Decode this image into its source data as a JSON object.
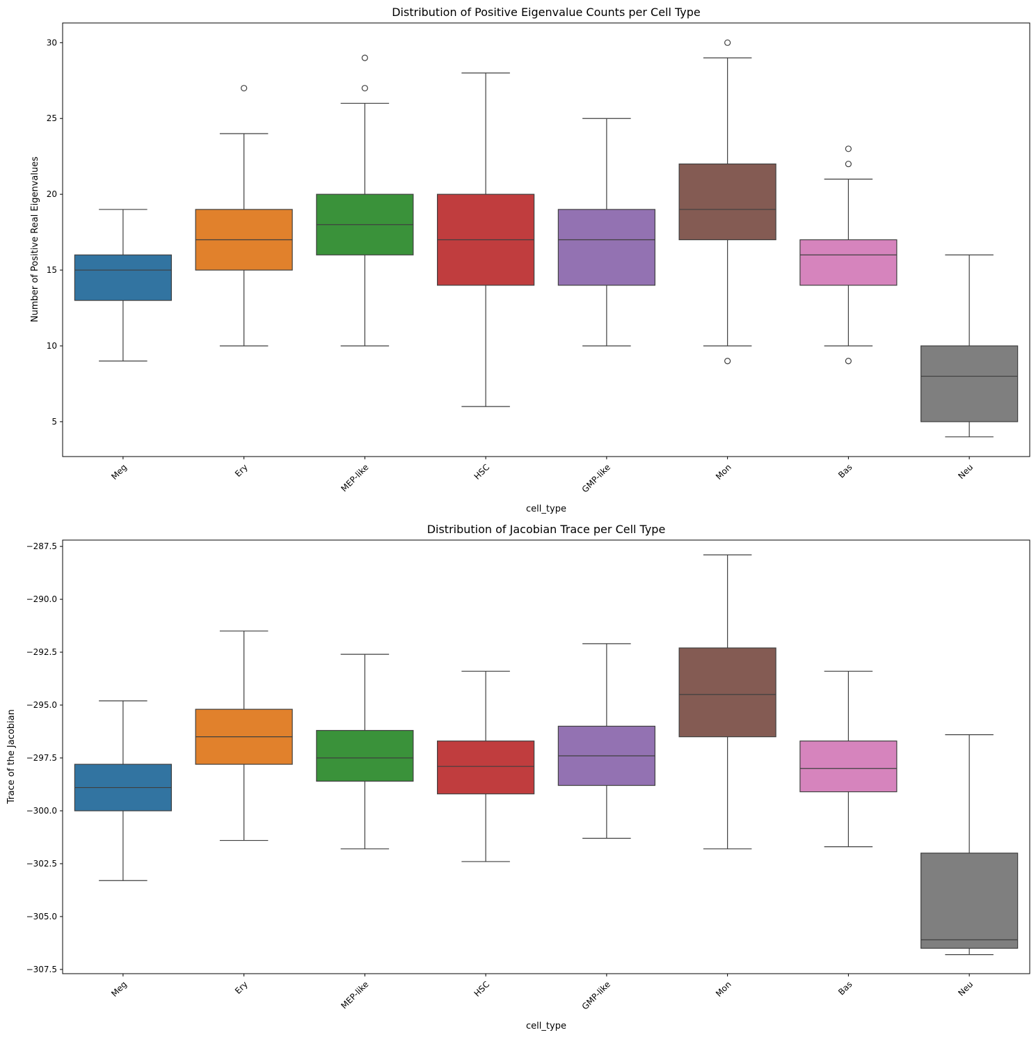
{
  "chart_data": [
    {
      "type": "box",
      "title": "Distribution of Positive Eigenvalue Counts per Cell Type",
      "xlabel": "cell_type",
      "ylabel": "Number of Positive Real Eigenvalues",
      "ylim": [
        2.7,
        31.3
      ],
      "yticks": [
        5,
        10,
        15,
        20,
        25,
        30
      ],
      "ytick_labels": [
        "5",
        "10",
        "15",
        "20",
        "25",
        "30"
      ],
      "categories": [
        "Meg",
        "Ery",
        "MEP-like",
        "HSC",
        "GMP-like",
        "Mon",
        "Bas",
        "Neu"
      ],
      "colors": [
        "#3274a1",
        "#e1812c",
        "#3a923a",
        "#c03d3e",
        "#9372b2",
        "#845b53",
        "#d684bd",
        "#7f7f7f"
      ],
      "boxes": [
        {
          "whislo": 9,
          "q1": 13,
          "med": 15,
          "q3": 16,
          "whishi": 19,
          "fliers": []
        },
        {
          "whislo": 10,
          "q1": 15,
          "med": 17,
          "q3": 19,
          "whishi": 24,
          "fliers": [
            27
          ]
        },
        {
          "whislo": 10,
          "q1": 16,
          "med": 18,
          "q3": 20,
          "whishi": 26,
          "fliers": [
            27,
            29
          ]
        },
        {
          "whislo": 6,
          "q1": 14,
          "med": 17,
          "q3": 20,
          "whishi": 28,
          "fliers": []
        },
        {
          "whislo": 10,
          "q1": 14,
          "med": 17,
          "q3": 19,
          "whishi": 25,
          "fliers": []
        },
        {
          "whislo": 10,
          "q1": 17,
          "med": 19,
          "q3": 22,
          "whishi": 29,
          "fliers": [
            30,
            9
          ]
        },
        {
          "whislo": 10,
          "q1": 14,
          "med": 16,
          "q3": 17,
          "whishi": 21,
          "fliers": [
            23,
            22,
            9
          ]
        },
        {
          "whislo": 4,
          "q1": 5,
          "med": 8,
          "q3": 10,
          "whishi": 16,
          "fliers": []
        }
      ]
    },
    {
      "type": "box",
      "title": "Distribution of Jacobian Trace per Cell Type",
      "xlabel": "cell_type",
      "ylabel": "Trace of the Jacobian",
      "ylim": [
        -307.7,
        -287.2
      ],
      "yticks": [
        -287.5,
        -290.0,
        -292.5,
        -295.0,
        -297.5,
        -300.0,
        -302.5,
        -305.0,
        -307.5
      ],
      "ytick_labels": [
        "−287.5",
        "−290.0",
        "−292.5",
        "−295.0",
        "−297.5",
        "−300.0",
        "−302.5",
        "−305.0",
        "−307.5"
      ],
      "categories": [
        "Meg",
        "Ery",
        "MEP-like",
        "HSC",
        "GMP-like",
        "Mon",
        "Bas",
        "Neu"
      ],
      "colors": [
        "#3274a1",
        "#e1812c",
        "#3a923a",
        "#c03d3e",
        "#9372b2",
        "#845b53",
        "#d684bd",
        "#7f7f7f"
      ],
      "boxes": [
        {
          "whislo": -303.3,
          "q1": -300.0,
          "med": -298.9,
          "q3": -297.8,
          "whishi": -294.8,
          "fliers": []
        },
        {
          "whislo": -301.4,
          "q1": -297.8,
          "med": -296.5,
          "q3": -295.2,
          "whishi": -291.5,
          "fliers": []
        },
        {
          "whislo": -301.8,
          "q1": -298.6,
          "med": -297.5,
          "q3": -296.2,
          "whishi": -292.6,
          "fliers": []
        },
        {
          "whislo": -302.4,
          "q1": -299.2,
          "med": -297.9,
          "q3": -296.7,
          "whishi": -293.4,
          "fliers": []
        },
        {
          "whislo": -301.3,
          "q1": -298.8,
          "med": -297.4,
          "q3": -296.0,
          "whishi": -292.1,
          "fliers": []
        },
        {
          "whislo": -301.8,
          "q1": -296.5,
          "med": -294.5,
          "q3": -292.3,
          "whishi": -287.9,
          "fliers": []
        },
        {
          "whislo": -301.7,
          "q1": -299.1,
          "med": -298.0,
          "q3": -296.7,
          "whishi": -293.4,
          "fliers": []
        },
        {
          "whislo": -306.8,
          "q1": -306.5,
          "med": -306.1,
          "q3": -302.0,
          "whishi": -296.4,
          "fliers": []
        }
      ]
    }
  ]
}
